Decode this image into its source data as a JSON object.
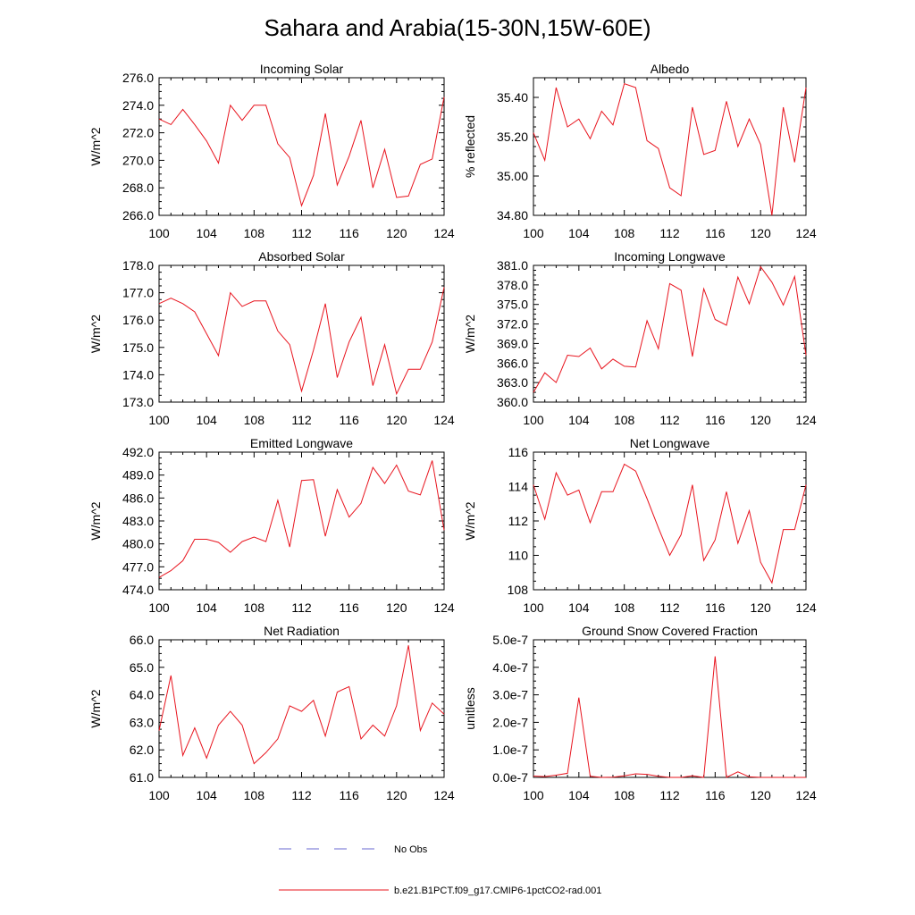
{
  "figure": {
    "title": "Sahara and Arabia(15-30N,15W-60E)"
  },
  "legend": {
    "items": [
      {
        "label": "No Obs",
        "color": "#6a6ad0",
        "style": "dashed"
      },
      {
        "label": "b.e21.B1PCT.f09_g17.CMIP6-1pctCO2-rad.001",
        "color": "#e8141e",
        "style": "solid"
      }
    ]
  },
  "chart_data": [
    {
      "type": "line",
      "title": "Incoming Solar",
      "ylabel": "W/m^2",
      "xlabel": "",
      "xlim": [
        100,
        124
      ],
      "ylim": [
        266,
        276
      ],
      "yticks": [
        266,
        268,
        270,
        272,
        274,
        276
      ],
      "ytick_labels": [
        "266.0",
        "268.0",
        "270.0",
        "272.0",
        "274.0",
        "276.0"
      ],
      "xticks": [
        100,
        104,
        108,
        112,
        116,
        120,
        124
      ],
      "x": [
        100,
        101,
        102,
        103,
        104,
        105,
        106,
        107,
        108,
        109,
        110,
        111,
        112,
        113,
        114,
        115,
        116,
        117,
        118,
        119,
        120,
        121,
        122,
        123,
        124
      ],
      "series": [
        {
          "color": "#e8141e",
          "values": [
            273.0,
            272.6,
            273.7,
            272.6,
            271.4,
            269.8,
            274.0,
            272.9,
            274.0,
            274.0,
            271.2,
            270.2,
            266.7,
            268.9,
            273.4,
            268.2,
            270.3,
            272.9,
            268.0,
            270.8,
            267.3,
            267.4,
            269.7,
            270.1,
            274.6
          ]
        }
      ]
    },
    {
      "type": "line",
      "title": "Albedo",
      "ylabel": "% reflected",
      "xlabel": "",
      "xlim": [
        100,
        124
      ],
      "ylim": [
        34.8,
        35.5
      ],
      "yticks": [
        34.8,
        35.0,
        35.2,
        35.4
      ],
      "ytick_labels": [
        "34.80",
        "35.00",
        "35.20",
        "35.40"
      ],
      "xticks": [
        100,
        104,
        108,
        112,
        116,
        120,
        124
      ],
      "x": [
        100,
        101,
        102,
        103,
        104,
        105,
        106,
        107,
        108,
        109,
        110,
        111,
        112,
        113,
        114,
        115,
        116,
        117,
        118,
        119,
        120,
        121,
        122,
        123,
        124
      ],
      "series": [
        {
          "color": "#e8141e",
          "values": [
            35.22,
            35.08,
            35.45,
            35.25,
            35.29,
            35.19,
            35.33,
            35.26,
            35.47,
            35.45,
            35.18,
            35.14,
            34.94,
            34.9,
            35.35,
            35.11,
            35.13,
            35.38,
            35.15,
            35.29,
            35.16,
            34.8,
            35.35,
            35.07,
            35.45
          ]
        }
      ]
    },
    {
      "type": "line",
      "title": "Absorbed Solar",
      "ylabel": "W/m^2",
      "xlabel": "",
      "xlim": [
        100,
        124
      ],
      "ylim": [
        173,
        178
      ],
      "yticks": [
        173,
        174,
        175,
        176,
        177,
        178
      ],
      "ytick_labels": [
        "173.0",
        "174.0",
        "175.0",
        "176.0",
        "177.0",
        "178.0"
      ],
      "xticks": [
        100,
        104,
        108,
        112,
        116,
        120,
        124
      ],
      "x": [
        100,
        101,
        102,
        103,
        104,
        105,
        106,
        107,
        108,
        109,
        110,
        111,
        112,
        113,
        114,
        115,
        116,
        117,
        118,
        119,
        120,
        121,
        122,
        123,
        124
      ],
      "series": [
        {
          "color": "#e8141e",
          "values": [
            176.6,
            176.8,
            176.6,
            176.3,
            175.5,
            174.7,
            177.0,
            176.5,
            176.7,
            176.7,
            175.6,
            175.1,
            173.4,
            174.9,
            176.6,
            173.9,
            175.2,
            176.1,
            173.6,
            175.1,
            173.3,
            174.2,
            174.2,
            175.2,
            177.2
          ]
        }
      ]
    },
    {
      "type": "line",
      "title": "Incoming Longwave",
      "ylabel": "W/m^2",
      "xlabel": "",
      "xlim": [
        100,
        124
      ],
      "ylim": [
        360,
        381
      ],
      "yticks": [
        360,
        363,
        366,
        369,
        372,
        375,
        378,
        381
      ],
      "ytick_labels": [
        "360.0",
        "363.0",
        "366.0",
        "369.0",
        "372.0",
        "375.0",
        "378.0",
        "381.0"
      ],
      "xticks": [
        100,
        104,
        108,
        112,
        116,
        120,
        124
      ],
      "x": [
        100,
        101,
        102,
        103,
        104,
        105,
        106,
        107,
        108,
        109,
        110,
        111,
        112,
        113,
        114,
        115,
        116,
        117,
        118,
        119,
        120,
        121,
        122,
        123,
        124
      ],
      "series": [
        {
          "color": "#e8141e",
          "values": [
            361.5,
            364.5,
            363.0,
            367.2,
            367.0,
            368.3,
            365.1,
            366.6,
            365.5,
            365.4,
            372.5,
            368.2,
            378.2,
            377.2,
            367.0,
            377.4,
            372.7,
            371.8,
            379.2,
            375.1,
            380.8,
            378.4,
            374.9,
            379.3,
            367.2
          ]
        }
      ]
    },
    {
      "type": "line",
      "title": "Emitted Longwave",
      "ylabel": "W/m^2",
      "xlabel": "",
      "xlim": [
        100,
        124
      ],
      "ylim": [
        474,
        492
      ],
      "yticks": [
        474,
        477,
        480,
        483,
        486,
        489,
        492
      ],
      "ytick_labels": [
        "474.0",
        "477.0",
        "480.0",
        "483.0",
        "486.0",
        "489.0",
        "492.0"
      ],
      "xticks": [
        100,
        104,
        108,
        112,
        116,
        120,
        124
      ],
      "x": [
        100,
        101,
        102,
        103,
        104,
        105,
        106,
        107,
        108,
        109,
        110,
        111,
        112,
        113,
        114,
        115,
        116,
        117,
        118,
        119,
        120,
        121,
        122,
        123,
        124
      ],
      "series": [
        {
          "color": "#e8141e",
          "values": [
            475.6,
            476.5,
            477.8,
            480.6,
            480.6,
            480.2,
            478.9,
            480.3,
            480.9,
            480.3,
            485.7,
            479.6,
            488.3,
            488.4,
            481.0,
            487.1,
            483.5,
            485.3,
            490.0,
            487.9,
            490.3,
            486.9,
            486.4,
            490.9,
            481.8
          ]
        }
      ]
    },
    {
      "type": "line",
      "title": "Net Longwave",
      "ylabel": "W/m^2",
      "xlabel": "",
      "xlim": [
        100,
        124
      ],
      "ylim": [
        108,
        116
      ],
      "yticks": [
        108,
        110,
        112,
        114,
        116
      ],
      "ytick_labels": [
        "108",
        "110",
        "112",
        "114",
        "116"
      ],
      "xticks": [
        100,
        104,
        108,
        112,
        116,
        120,
        124
      ],
      "x": [
        100,
        101,
        102,
        103,
        104,
        105,
        106,
        107,
        108,
        109,
        110,
        111,
        112,
        113,
        114,
        115,
        116,
        117,
        118,
        119,
        120,
        121,
        122,
        123,
        124
      ],
      "series": [
        {
          "color": "#e8141e",
          "values": [
            114.1,
            112.1,
            114.8,
            113.5,
            113.8,
            111.9,
            113.7,
            113.7,
            115.3,
            114.9,
            113.3,
            111.6,
            110.0,
            111.2,
            114.1,
            109.7,
            110.9,
            113.7,
            110.7,
            112.6,
            109.6,
            108.4,
            111.5,
            111.5,
            114.1
          ]
        }
      ]
    },
    {
      "type": "line",
      "title": "Net Radiation",
      "ylabel": "W/m^2",
      "xlabel": "",
      "xlim": [
        100,
        124
      ],
      "ylim": [
        61,
        66
      ],
      "yticks": [
        61,
        62,
        63,
        64,
        65,
        66
      ],
      "ytick_labels": [
        "61.0",
        "62.0",
        "63.0",
        "64.0",
        "65.0",
        "66.0"
      ],
      "xticks": [
        100,
        104,
        108,
        112,
        116,
        120,
        124
      ],
      "x": [
        100,
        101,
        102,
        103,
        104,
        105,
        106,
        107,
        108,
        109,
        110,
        111,
        112,
        113,
        114,
        115,
        116,
        117,
        118,
        119,
        120,
        121,
        122,
        123,
        124
      ],
      "series": [
        {
          "color": "#e8141e",
          "values": [
            62.7,
            64.7,
            61.8,
            62.8,
            61.7,
            62.9,
            63.4,
            62.9,
            61.5,
            61.9,
            62.4,
            63.6,
            63.4,
            63.8,
            62.5,
            64.1,
            64.3,
            62.4,
            62.9,
            62.5,
            63.6,
            65.8,
            62.7,
            63.7,
            63.3
          ]
        }
      ]
    },
    {
      "type": "line",
      "title": "Ground Snow Covered Fraction",
      "ylabel": "unitless",
      "xlabel": "",
      "xlim": [
        100,
        124
      ],
      "ylim": [
        0,
        5e-07
      ],
      "yticks": [
        0,
        1e-07,
        2e-07,
        3e-07,
        4e-07,
        5e-07
      ],
      "ytick_labels": [
        "0.0e-7",
        "1.0e-7",
        "2.0e-7",
        "3.0e-7",
        "4.0e-7",
        "5.0e-7"
      ],
      "xticks": [
        100,
        104,
        108,
        112,
        116,
        120,
        124
      ],
      "x": [
        100,
        101,
        102,
        103,
        104,
        105,
        106,
        107,
        108,
        109,
        110,
        111,
        112,
        113,
        114,
        115,
        116,
        117,
        118,
        119,
        120,
        121,
        122,
        123,
        124
      ],
      "series": [
        {
          "color": "#e8141e",
          "values": [
            5e-09,
            3e-09,
            8e-09,
            1.5e-08,
            2.9e-07,
            4e-09,
            0,
            1e-09,
            6e-09,
            1.3e-08,
            1.1e-08,
            4e-09,
            0,
            0,
            6e-09,
            0,
            4.4e-07,
            0,
            2e-08,
            2e-09,
            0,
            0,
            0,
            0,
            0
          ]
        }
      ]
    }
  ]
}
